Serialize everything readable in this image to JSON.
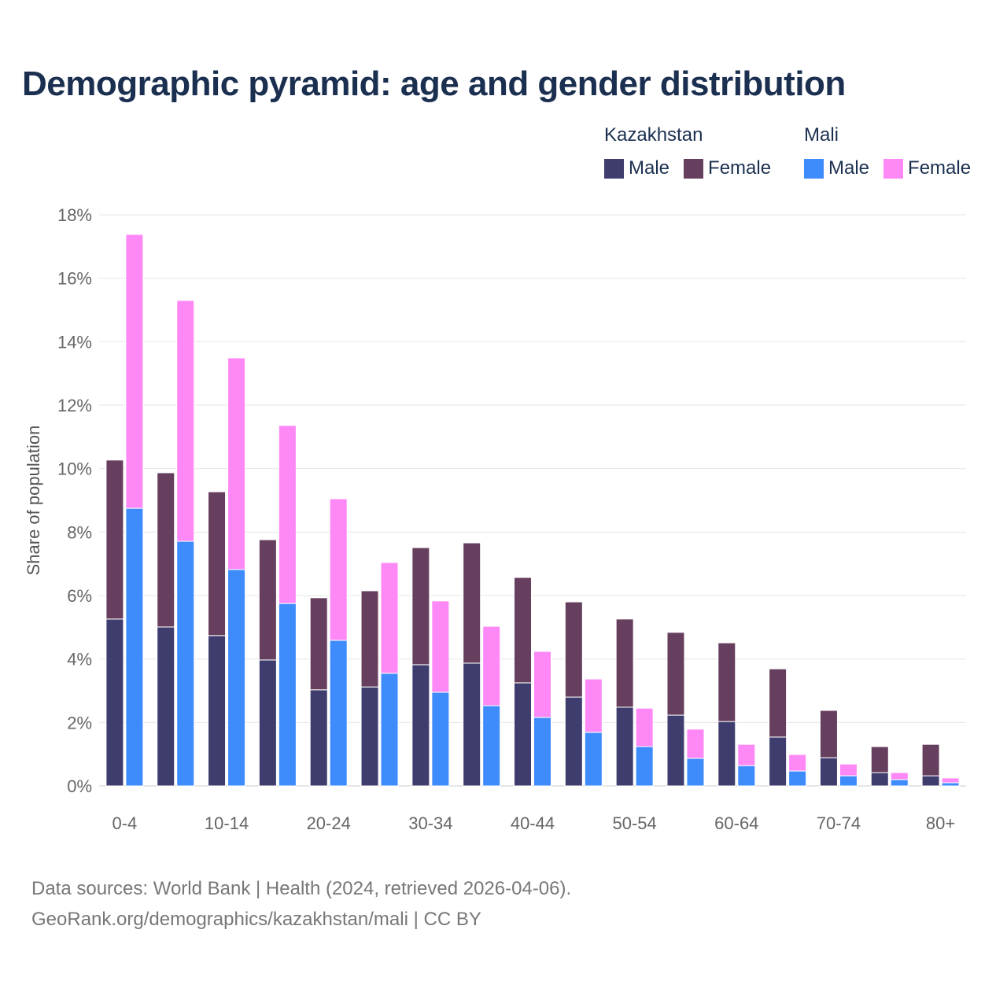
{
  "chart_data": {
    "type": "bar",
    "title": "Demographic pyramid: age and gender distribution",
    "xlabel": "",
    "ylabel": "Share of population",
    "ylim": [
      0,
      18
    ],
    "yticks": [
      "0%",
      "2%",
      "4%",
      "6%",
      "8%",
      "10%",
      "12%",
      "14%",
      "16%",
      "18%"
    ],
    "categories": [
      "0-4",
      "5-9",
      "10-14",
      "15-19",
      "20-24",
      "25-29",
      "30-34",
      "35-39",
      "40-44",
      "45-49",
      "50-54",
      "55-59",
      "60-64",
      "65-69",
      "70-74",
      "75-79",
      "80+"
    ],
    "xtick_labels": [
      "0-4",
      "10-14",
      "20-24",
      "30-34",
      "40-44",
      "50-54",
      "60-64",
      "70-74",
      "80+"
    ],
    "countries": [
      {
        "name": "Kazakhstan",
        "series": [
          {
            "name": "Male",
            "color": "#3f3d6e",
            "values": [
              5.26,
              5.01,
              4.74,
              3.97,
              3.03,
              3.12,
              3.82,
              3.87,
              3.25,
              2.8,
              2.48,
              2.23,
              2.03,
              1.54,
              0.89,
              0.42,
              0.32
            ]
          },
          {
            "name": "Female",
            "color": "#663f5f",
            "values": [
              5.01,
              4.86,
              4.53,
              3.79,
              2.9,
              3.03,
              3.69,
              3.79,
              3.32,
              3.0,
              2.78,
              2.61,
              2.48,
              2.15,
              1.49,
              0.82,
              0.99
            ]
          }
        ]
      },
      {
        "name": "Mali",
        "series": [
          {
            "name": "Male",
            "color": "#3e8bfc",
            "values": [
              8.75,
              7.71,
              6.82,
              5.75,
              4.59,
              3.55,
              2.95,
              2.53,
              2.16,
              1.69,
              1.24,
              0.87,
              0.64,
              0.47,
              0.32,
              0.2,
              0.1
            ]
          },
          {
            "name": "Female",
            "color": "#ff88f7",
            "values": [
              8.63,
              7.59,
              6.67,
              5.61,
              4.46,
              3.49,
              2.88,
              2.5,
              2.08,
              1.68,
              1.21,
              0.92,
              0.67,
              0.52,
              0.37,
              0.22,
              0.15
            ]
          }
        ]
      }
    ],
    "legend_position": "top-right",
    "grid": true
  },
  "source_line1": "Data sources: World Bank | Health (2024, retrieved 2026-04-06).",
  "source_line2": "GeoRank.org/demographics/kazakhstan/mali | CC BY"
}
